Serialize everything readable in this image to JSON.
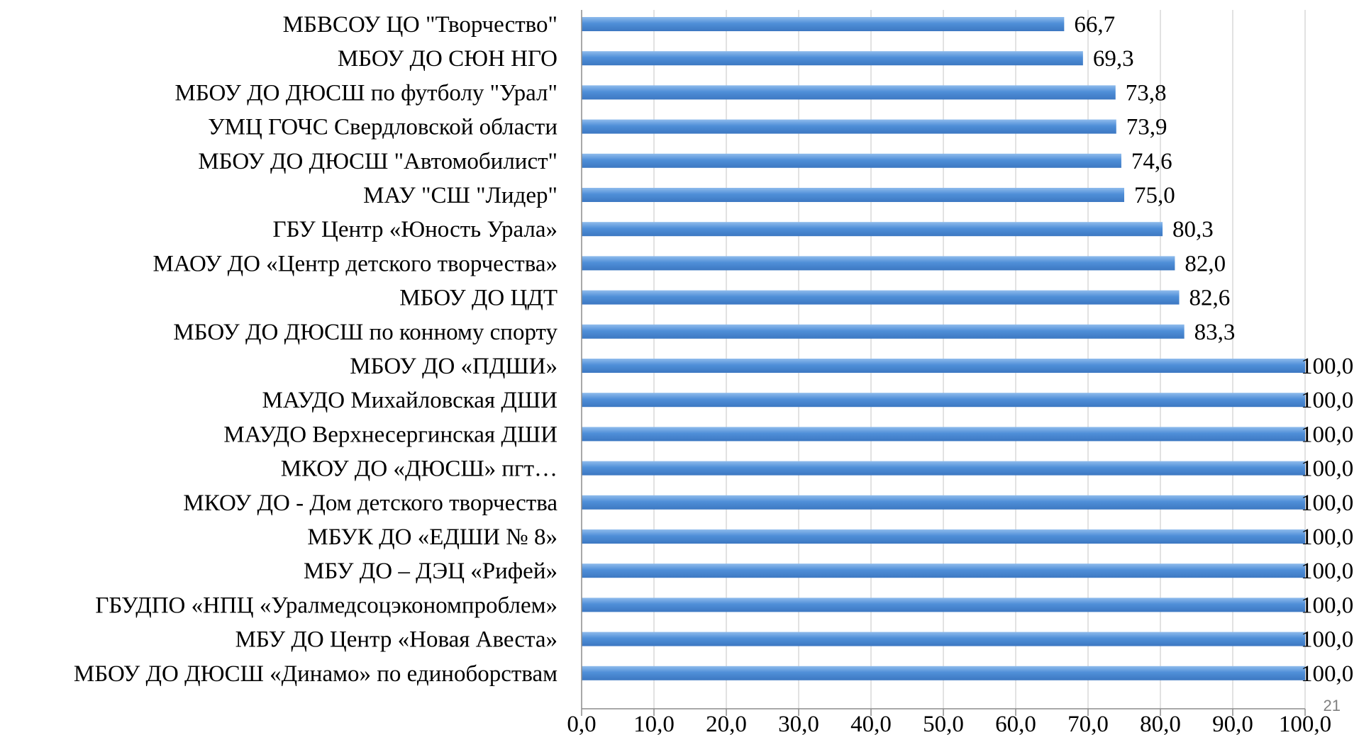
{
  "page_number": "21",
  "chart_data": {
    "type": "bar",
    "orientation": "horizontal",
    "categories": [
      "МБВСОУ ЦО \"Творчество\"",
      "МБОУ ДО СЮН НГО",
      "МБОУ ДО ДЮСШ по футболу \"Урал\"",
      "УМЦ ГОЧС Свердловской области",
      "МБОУ ДО ДЮСШ \"Автомобилист\"",
      "МАУ \"СШ \"Лидер\"",
      "ГБУ Центр «Юность Урала»",
      "МАОУ ДО «Центр детского творчества»",
      "МБОУ ДО  ЦДТ",
      "МБОУ ДО ДЮСШ по конному спорту",
      "МБОУ ДО «ПДШИ»",
      "МАУДО Михайловская ДШИ",
      "МАУДО Верхнесергинская ДШИ",
      "МКОУ ДО «ДЮСШ» пгт…",
      "МКОУ ДО - Дом детского творчества",
      "МБУК ДО «ЕДШИ № 8»",
      "МБУ ДО – ДЭЦ «Рифей»",
      "ГБУДПО «НПЦ «Уралмедсоцэкономпроблем»",
      "МБУ ДО Центр «Новая Авеста»",
      "МБОУ ДО ДЮСШ «Динамо» по единоборствам"
    ],
    "values": [
      66.7,
      69.3,
      73.8,
      73.9,
      74.6,
      75.0,
      80.3,
      82.0,
      82.6,
      83.3,
      100.0,
      100.0,
      100.0,
      100.0,
      100.0,
      100.0,
      100.0,
      100.0,
      100.0,
      100.0
    ],
    "value_labels": [
      "66,7",
      "69,3",
      "73,8",
      "73,9",
      "74,6",
      "75,0",
      "80,3",
      "82,0",
      "82,6",
      "83,3",
      "100,0",
      "100,0",
      "100,0",
      "100,0",
      "100,0",
      "100,0",
      "100,0",
      "100,0",
      "100,0",
      "100,0"
    ],
    "xticks": [
      "0,0",
      "10,0",
      "20,0",
      "30,0",
      "40,0",
      "50,0",
      "60,0",
      "70,0",
      "80,0",
      "90,0",
      "100,0"
    ],
    "xlim": [
      0,
      100
    ],
    "grid": "vertical",
    "legend": "none",
    "bar_color": "#4f8fd8",
    "bar_color_light": "#8fbcec",
    "grid_color": "#d9d9d9",
    "axis_color": "#8c8c8c"
  }
}
